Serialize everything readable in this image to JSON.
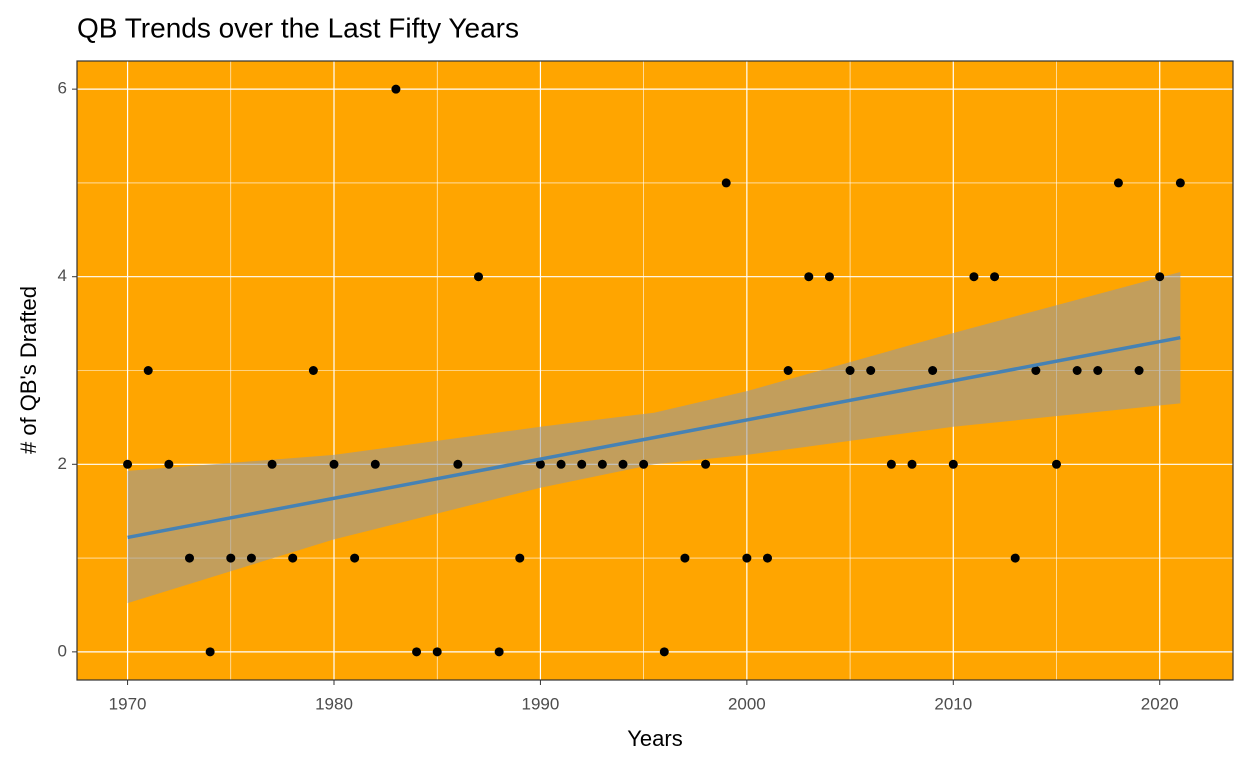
{
  "chart_data": {
    "type": "scatter",
    "title": "QB Trends over the Last Fifty Years",
    "x_label": "Years",
    "y_label": "# of QB's Drafted",
    "x": [
      1970,
      1971,
      1972,
      1973,
      1974,
      1975,
      1976,
      1977,
      1978,
      1979,
      1980,
      1981,
      1982,
      1983,
      1984,
      1985,
      1986,
      1987,
      1988,
      1989,
      1990,
      1991,
      1992,
      1993,
      1994,
      1995,
      1996,
      1997,
      1998,
      1999,
      2000,
      2001,
      2002,
      2003,
      2004,
      2005,
      2006,
      2007,
      2008,
      2009,
      2010,
      2011,
      2012,
      2013,
      2014,
      2015,
      2016,
      2017,
      2018,
      2019,
      2020,
      2021
    ],
    "values": [
      2,
      3,
      2,
      1,
      0,
      1,
      1,
      2,
      1,
      3,
      2,
      1,
      2,
      6,
      0,
      0,
      2,
      4,
      0,
      1,
      2,
      2,
      2,
      2,
      2,
      2,
      0,
      1,
      2,
      5,
      1,
      1,
      3,
      4,
      4,
      3,
      3,
      2,
      2,
      3,
      2,
      4,
      4,
      1,
      3,
      2,
      3,
      3,
      5,
      3,
      4,
      5
    ],
    "color": "#000000",
    "trend": {
      "x": [
        1970,
        2021
      ],
      "values": [
        1.22,
        3.35
      ],
      "color": "#4682b4"
    },
    "band": {
      "x": [
        1970,
        1980,
        1990,
        1995.5,
        2000,
        2010,
        2021
      ],
      "lower": [
        0.52,
        1.2,
        1.75,
        2.0,
        2.1,
        2.4,
        2.65
      ],
      "upper": [
        1.93,
        2.1,
        2.4,
        2.55,
        2.78,
        3.4,
        4.05
      ],
      "color": "#999999"
    },
    "xlim": [
      1967.55,
      2023.55
    ],
    "ylim": [
      -0.3,
      6.3
    ],
    "xticks": [
      1970,
      1980,
      1990,
      2000,
      2010,
      2020
    ],
    "yticks": [
      0,
      2,
      4,
      6
    ],
    "xminorticks": [
      1975,
      1985,
      1995,
      2005,
      2015
    ],
    "yminorticks": [
      1,
      3,
      5
    ],
    "grid": true,
    "panel_color": "#ffa500"
  }
}
